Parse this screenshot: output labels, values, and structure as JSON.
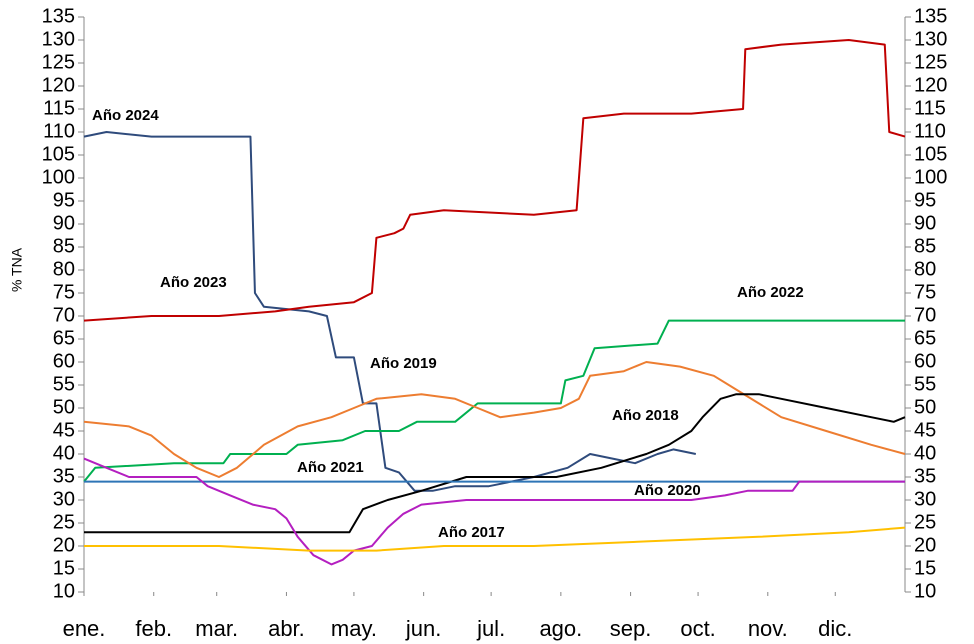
{
  "chart_data": {
    "type": "line",
    "y_label": "% TNA",
    "xlim": [
      0,
      365
    ],
    "xticks": [
      {
        "value": 0,
        "label": "ene."
      },
      {
        "value": 31,
        "label": "feb."
      },
      {
        "value": 59,
        "label": "mar."
      },
      {
        "value": 90,
        "label": "abr."
      },
      {
        "value": 120,
        "label": "may."
      },
      {
        "value": 151,
        "label": "jun."
      },
      {
        "value": 181,
        "label": "jul."
      },
      {
        "value": 212,
        "label": "ago."
      },
      {
        "value": 243,
        "label": "sep."
      },
      {
        "value": 273,
        "label": "oct."
      },
      {
        "value": 304,
        "label": "nov."
      },
      {
        "value": 334,
        "label": "dic."
      }
    ],
    "ylim": [
      10,
      135
    ],
    "yticks": [
      10,
      15,
      20,
      25,
      30,
      35,
      40,
      45,
      50,
      55,
      60,
      65,
      70,
      75,
      80,
      85,
      90,
      95,
      100,
      105,
      110,
      115,
      120,
      125,
      130,
      135
    ],
    "y2lim": [
      10,
      135
    ],
    "y2ticks": [
      10,
      15,
      20,
      25,
      30,
      35,
      40,
      45,
      50,
      55,
      60,
      65,
      70,
      75,
      80,
      85,
      90,
      95,
      100,
      105,
      110,
      115,
      120,
      125,
      130,
      135
    ],
    "series": [
      {
        "name": "Año 2024",
        "color": "#2f4b7c",
        "x": [
          0,
          10,
          30,
          60,
          74,
          76,
          80,
          100,
          108,
          112,
          120,
          124,
          130,
          134,
          140,
          147,
          155,
          165,
          180,
          200,
          215,
          225,
          235,
          245,
          255,
          262,
          272
        ],
        "values": [
          109,
          110,
          109,
          109,
          109,
          75,
          72,
          71,
          70,
          61,
          61,
          51,
          51,
          37,
          36,
          32,
          32,
          33,
          33,
          35,
          37,
          40,
          39,
          38,
          40,
          41,
          40
        ]
      },
      {
        "name": "Año 2023",
        "color": "#c00000",
        "x": [
          0,
          30,
          60,
          85,
          100,
          120,
          128,
          130,
          138,
          142,
          145,
          160,
          200,
          219,
          222,
          240,
          270,
          293,
          294,
          310,
          340,
          356,
          358,
          365
        ],
        "values": [
          69,
          70,
          70,
          71,
          72,
          73,
          75,
          87,
          88,
          89,
          92,
          93,
          92,
          93,
          113,
          114,
          114,
          115,
          128,
          129,
          130,
          129,
          110,
          109
        ]
      },
      {
        "name": "Año 2022",
        "color": "#00b050",
        "x": [
          0,
          5,
          40,
          62,
          65,
          90,
          95,
          115,
          125,
          140,
          148,
          165,
          175,
          205,
          212,
          214,
          222,
          227,
          255,
          260,
          280,
          320,
          365
        ],
        "values": [
          34,
          37,
          38,
          38,
          40,
          40,
          42,
          43,
          45,
          45,
          47,
          47,
          51,
          51,
          51,
          56,
          57,
          63,
          64,
          69,
          69,
          69,
          69
        ]
      },
      {
        "name": "Año 2019",
        "color": "#ed7d31",
        "x": [
          0,
          20,
          30,
          40,
          50,
          60,
          68,
          80,
          95,
          110,
          120,
          130,
          150,
          165,
          175,
          185,
          200,
          212,
          220,
          225,
          240,
          250,
          265,
          280,
          290,
          310,
          330,
          350,
          365
        ],
        "values": [
          47,
          46,
          44,
          40,
          37,
          35,
          37,
          42,
          46,
          48,
          50,
          52,
          53,
          52,
          50,
          48,
          49,
          50,
          52,
          57,
          58,
          60,
          59,
          57,
          54,
          48,
          45,
          42,
          40
        ]
      },
      {
        "name": "Año 2018",
        "color": "#000000",
        "x": [
          0,
          60,
          110,
          118,
          124,
          135,
          150,
          170,
          190,
          210,
          230,
          250,
          260,
          270,
          275,
          283,
          290,
          300,
          310,
          330,
          350,
          360,
          365
        ],
        "values": [
          23,
          23,
          23,
          23,
          28,
          30,
          32,
          35,
          35,
          35,
          37,
          40,
          42,
          45,
          48,
          52,
          53,
          53,
          52,
          50,
          48,
          47,
          48
        ]
      },
      {
        "name": "Año 2021",
        "color": "#2e75b6",
        "x": [
          0,
          100,
          200,
          300,
          365
        ],
        "values": [
          34,
          34,
          34,
          34,
          34
        ]
      },
      {
        "name": "Año 2020",
        "color": "#b41fc0",
        "x": [
          0,
          10,
          20,
          40,
          50,
          55,
          65,
          75,
          85,
          90,
          95,
          102,
          110,
          115,
          120,
          128,
          135,
          142,
          150,
          170,
          200,
          240,
          270,
          285,
          295,
          315,
          318,
          340,
          365
        ],
        "values": [
          39,
          37,
          35,
          35,
          35,
          33,
          31,
          29,
          28,
          26,
          22,
          18,
          16,
          17,
          19,
          20,
          24,
          27,
          29,
          30,
          30,
          30,
          30,
          31,
          32,
          32,
          34,
          34,
          34
        ]
      },
      {
        "name": "Año 2017",
        "color": "#ffc000",
        "x": [
          0,
          60,
          100,
          130,
          160,
          200,
          250,
          300,
          340,
          365
        ],
        "values": [
          20,
          20,
          19,
          19,
          20,
          20,
          21,
          22,
          23,
          24
        ]
      }
    ]
  }
}
